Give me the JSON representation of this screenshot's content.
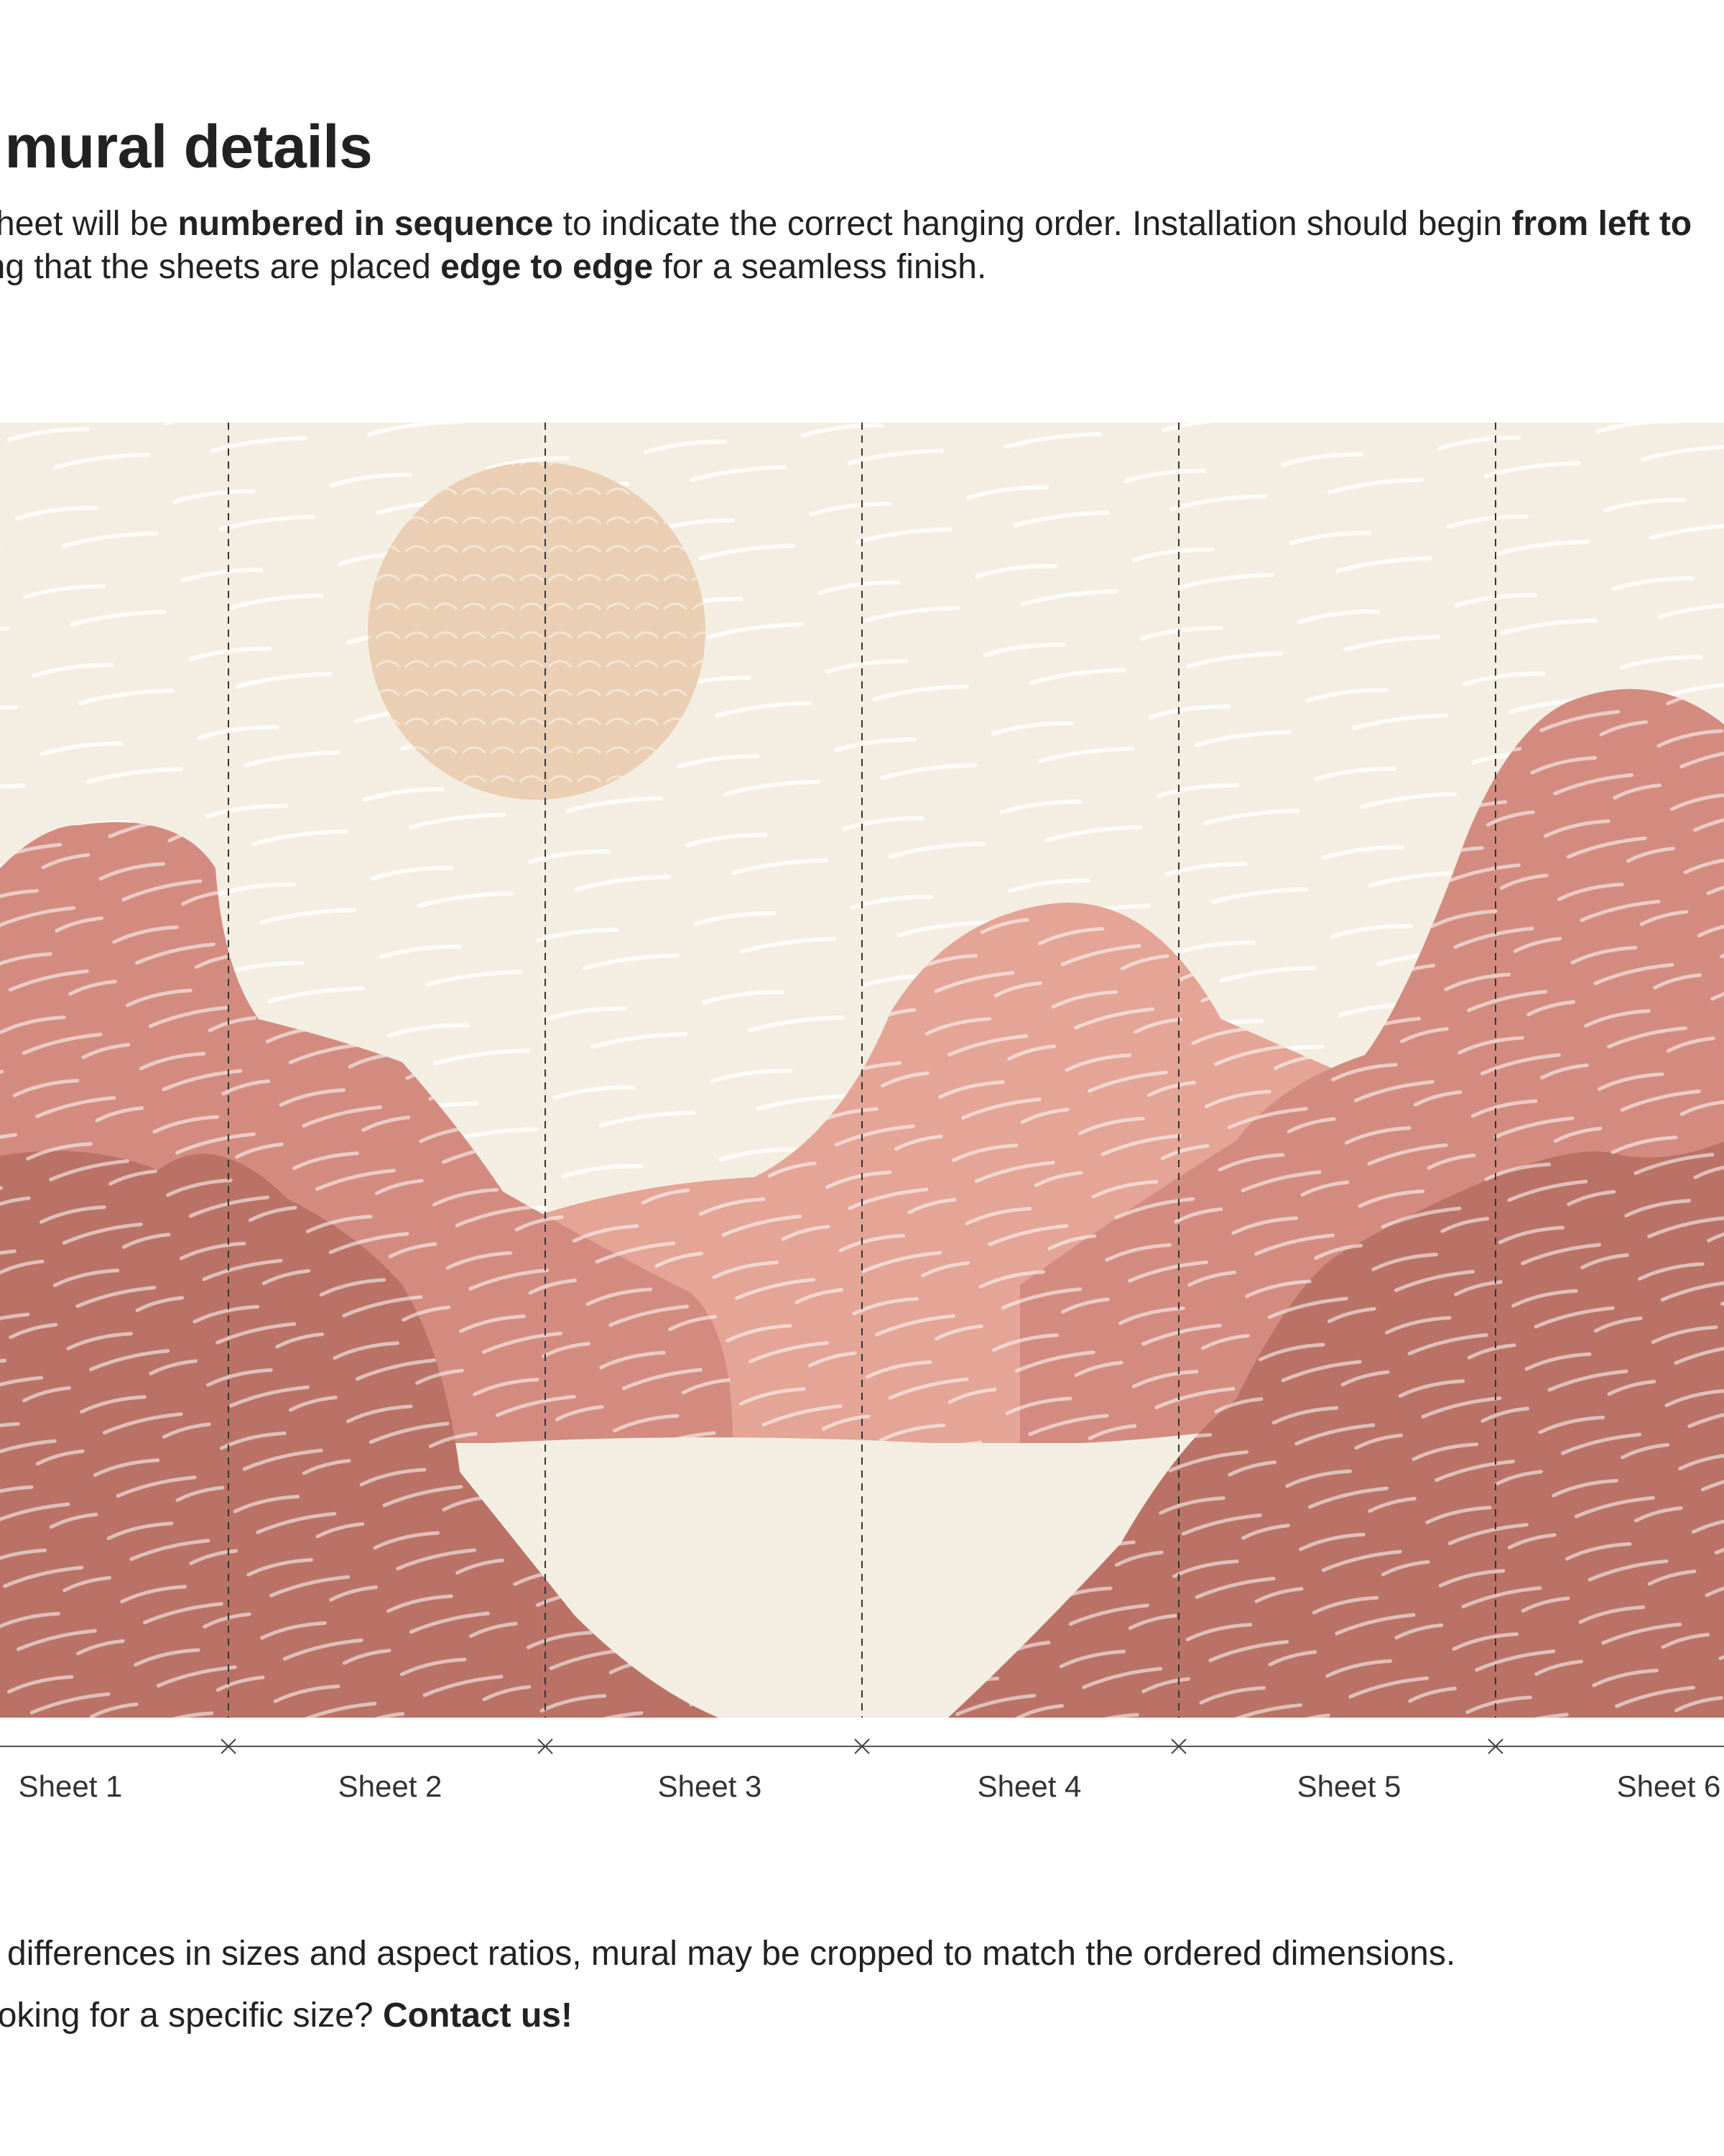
{
  "heading": "ll mural details",
  "intro": {
    "line1": {
      "a": "sheet will be ",
      "b1": "numbered in sequence",
      "c": " to indicate the correct hanging order. Installation should begin ",
      "b2": "from left to"
    },
    "line2": {
      "a": "ing that the sheets are placed ",
      "b1": "edge to edge",
      "c": " for a seamless finish."
    }
  },
  "mural": {
    "sheets": [
      "Sheet 1",
      "Sheet 2",
      "Sheet 3",
      "Sheet 4",
      "Sheet 5",
      "Sheet 6"
    ],
    "colors": {
      "sky": "#f3eee1",
      "sun": "#eacfb4",
      "mountain_far": "#e4a496",
      "mountain_mid": "#d38b80",
      "mountain_near": "#ba7266",
      "lake": "#f3eee1",
      "divider": "#333333"
    }
  },
  "notes": {
    "crop_text": "o differences in sizes and aspect ratios, mural may be cropped to match the ordered dimensions.",
    "contact_prefix": "ooking for a specific size? ",
    "contact_link": "Contact us!"
  }
}
